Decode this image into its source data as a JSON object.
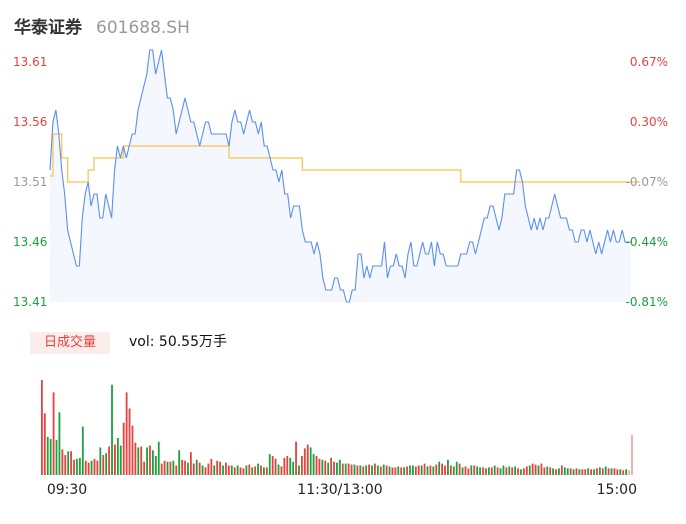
{
  "header": {
    "name": "华泰证券",
    "code": "601688.SH"
  },
  "volume_panel": {
    "badge": "日成交量",
    "vol_label": "vol: 50.55万手"
  },
  "colors": {
    "price_line": "#5b8ff0",
    "avg_line": "#f6c34a",
    "area_fill": "#f4f7fd",
    "up": "#e8413f",
    "down": "#1aa33c",
    "neutral": "#9a9a9a"
  },
  "chart_data": [
    {
      "type": "line",
      "title": "",
      "xlabel": "",
      "ylabel": "",
      "ylim": [
        13.41,
        13.61
      ],
      "y_ticks_left": [
        "13.61",
        "13.56",
        "13.51",
        "13.46",
        "13.41"
      ],
      "y_ticks_right": [
        "0.67%",
        "0.30%",
        "-0.07%",
        "-0.44%",
        "-0.81%"
      ],
      "x_ticks": [
        "09:30",
        "11:30/13:00",
        "15:00"
      ],
      "grid": false,
      "series": [
        {
          "name": "",
          "role": "price",
          "values": [
            13.52,
            13.56,
            13.57,
            13.55,
            13.52,
            13.5,
            13.47,
            13.46,
            13.45,
            13.44,
            13.44,
            13.48,
            13.5,
            13.51,
            13.49,
            13.5,
            13.5,
            13.48,
            13.48,
            13.5,
            13.49,
            13.48,
            13.52,
            13.54,
            13.53,
            13.54,
            13.53,
            13.54,
            13.55,
            13.55,
            13.57,
            13.58,
            13.59,
            13.6,
            13.62,
            13.62,
            13.6,
            13.61,
            13.62,
            13.6,
            13.58,
            13.58,
            13.57,
            13.55,
            13.56,
            13.57,
            13.58,
            13.57,
            13.56,
            13.56,
            13.55,
            13.54,
            13.55,
            13.56,
            13.56,
            13.55,
            13.55,
            13.55,
            13.55,
            13.55,
            13.55,
            13.54,
            13.56,
            13.57,
            13.56,
            13.56,
            13.55,
            13.56,
            13.57,
            13.56,
            13.56,
            13.55,
            13.56,
            13.54,
            13.54,
            13.53,
            13.52,
            13.52,
            13.51,
            13.52,
            13.5,
            13.5,
            13.48,
            13.49,
            13.49,
            13.49,
            13.47,
            13.46,
            13.46,
            13.46,
            13.45,
            13.46,
            13.45,
            13.43,
            13.42,
            13.42,
            13.42,
            13.43,
            13.43,
            13.42,
            13.42,
            13.41,
            13.41,
            13.42,
            13.42,
            13.45,
            13.45,
            13.43,
            13.44,
            13.43,
            13.44,
            13.44,
            13.44,
            13.44,
            13.46,
            13.43,
            13.44,
            13.44,
            13.45,
            13.44,
            13.44,
            13.43,
            13.45,
            13.46,
            13.44,
            13.44,
            13.45,
            13.46,
            13.45,
            13.45,
            13.46,
            13.44,
            13.46,
            13.45,
            13.45,
            13.44,
            13.44,
            13.44,
            13.44,
            13.44,
            13.45,
            13.45,
            13.45,
            13.46,
            13.46,
            13.45,
            13.46,
            13.47,
            13.48,
            13.48,
            13.49,
            13.49,
            13.48,
            13.47,
            13.48,
            13.5,
            13.5,
            13.5,
            13.5,
            13.52,
            13.52,
            13.51,
            13.49,
            13.48,
            13.47,
            13.48,
            13.47,
            13.48,
            13.47,
            13.48,
            13.48,
            13.49,
            13.5,
            13.49,
            13.48,
            13.48,
            13.48,
            13.47,
            13.47,
            13.46,
            13.46,
            13.47,
            13.47,
            13.46,
            13.47,
            13.46,
            13.45,
            13.46,
            13.45,
            13.46,
            13.47,
            13.46,
            13.47,
            13.46,
            13.46,
            13.47,
            13.46,
            13.46,
            13.46
          ]
        },
        {
          "name": "",
          "role": "average",
          "values": [
            13.515,
            13.55,
            13.55,
            13.55,
            13.53,
            13.53,
            13.51,
            13.51,
            13.51,
            13.51,
            13.51,
            13.51,
            13.51,
            13.52,
            13.52,
            13.53,
            13.53,
            13.53,
            13.53,
            13.53,
            13.53,
            13.53,
            13.53,
            13.53,
            13.53,
            13.54,
            13.54,
            13.54,
            13.54,
            13.54,
            13.54,
            13.54,
            13.54,
            13.54,
            13.54,
            13.54,
            13.54,
            13.54,
            13.54,
            13.54,
            13.54,
            13.54,
            13.54,
            13.54,
            13.54,
            13.54,
            13.54,
            13.54,
            13.54,
            13.54,
            13.54,
            13.54,
            13.54,
            13.54,
            13.54,
            13.54,
            13.54,
            13.54,
            13.54,
            13.54,
            13.54,
            13.53,
            13.53,
            13.53,
            13.53,
            13.53,
            13.53,
            13.53,
            13.53,
            13.53,
            13.53,
            13.53,
            13.53,
            13.53,
            13.53,
            13.53,
            13.53,
            13.53,
            13.53,
            13.53,
            13.53,
            13.53,
            13.53,
            13.53,
            13.53,
            13.53,
            13.52,
            13.52,
            13.52,
            13.52,
            13.52,
            13.52,
            13.52,
            13.52,
            13.52,
            13.52,
            13.52,
            13.52,
            13.52,
            13.52,
            13.52,
            13.52,
            13.52,
            13.52,
            13.52,
            13.52,
            13.52,
            13.52,
            13.52,
            13.52,
            13.52,
            13.52,
            13.52,
            13.52,
            13.52,
            13.52,
            13.52,
            13.52,
            13.52,
            13.52,
            13.52,
            13.52,
            13.52,
            13.52,
            13.52,
            13.52,
            13.52,
            13.52,
            13.52,
            13.52,
            13.52,
            13.52,
            13.52,
            13.52,
            13.52,
            13.52,
            13.52,
            13.52,
            13.52,
            13.52,
            13.51,
            13.51,
            13.51,
            13.51,
            13.51,
            13.51,
            13.51,
            13.51,
            13.51,
            13.51,
            13.51,
            13.51,
            13.51,
            13.51,
            13.51,
            13.51,
            13.51,
            13.51,
            13.51,
            13.51,
            13.51,
            13.51,
            13.51,
            13.51,
            13.51,
            13.51,
            13.51,
            13.51,
            13.51,
            13.51,
            13.51,
            13.51,
            13.51,
            13.51,
            13.51,
            13.51,
            13.51,
            13.51,
            13.51,
            13.51,
            13.51,
            13.51,
            13.51,
            13.51,
            13.51,
            13.51,
            13.51,
            13.51,
            13.51,
            13.51,
            13.51,
            13.51,
            13.51,
            13.51,
            13.51,
            13.51,
            13.51,
            13.51,
            13.51,
            13.51,
            13.51,
            13.51
          ]
        }
      ]
    },
    {
      "type": "bar",
      "title": "",
      "xlabel": "",
      "ylabel": "",
      "ylim": [
        0,
        1
      ],
      "grid": false,
      "series": [
        {
          "name": "",
          "values": [
            1.0,
            0.65,
            0.4,
            0.38,
            0.87,
            0.37,
            0.66,
            0.27,
            0.21,
            0.25,
            0.25,
            0.16,
            0.17,
            0.18,
            0.51,
            0.15,
            0.13,
            0.15,
            0.17,
            0.15,
            0.29,
            0.21,
            0.23,
            0.3,
            0.95,
            0.32,
            0.39,
            0.31,
            0.55,
            0.87,
            0.7,
            0.52,
            0.34,
            0.29,
            0.3,
            0.14,
            0.29,
            0.31,
            0.26,
            0.2,
            0.35,
            0.12,
            0.15,
            0.14,
            0.14,
            0.15,
            0.1,
            0.26,
            0.16,
            0.15,
            0.13,
            0.24,
            0.12,
            0.16,
            0.13,
            0.1,
            0.08,
            0.12,
            0.17,
            0.1,
            0.15,
            0.14,
            0.1,
            0.13,
            0.1,
            0.1,
            0.08,
            0.1,
            0.08,
            0.07,
            0.1,
            0.11,
            0.08,
            0.09,
            0.12,
            0.1,
            0.08,
            0.08,
            0.22,
            0.2,
            0.17,
            0.11,
            0.09,
            0.18,
            0.2,
            0.18,
            0.14,
            0.35,
            0.1,
            0.2,
            0.28,
            0.32,
            0.29,
            0.22,
            0.2,
            0.17,
            0.16,
            0.15,
            0.13,
            0.18,
            0.14,
            0.13,
            0.16,
            0.12,
            0.12,
            0.12,
            0.11,
            0.11,
            0.1,
            0.1,
            0.09,
            0.1,
            0.11,
            0.1,
            0.12,
            0.1,
            0.09,
            0.11,
            0.1,
            0.09,
            0.08,
            0.08,
            0.09,
            0.08,
            0.08,
            0.09,
            0.1,
            0.1,
            0.09,
            0.1,
            0.1,
            0.12,
            0.09,
            0.1,
            0.09,
            0.11,
            0.14,
            0.12,
            0.1,
            0.16,
            0.1,
            0.09,
            0.14,
            0.12,
            0.08,
            0.09,
            0.07,
            0.1,
            0.1,
            0.09,
            0.08,
            0.08,
            0.07,
            0.08,
            0.08,
            0.1,
            0.08,
            0.07,
            0.1,
            0.08,
            0.09,
            0.08,
            0.09,
            0.07,
            0.06,
            0.07,
            0.09,
            0.1,
            0.12,
            0.11,
            0.1,
            0.12,
            0.08,
            0.09,
            0.08,
            0.07,
            0.06,
            0.07,
            0.1,
            0.08,
            0.07,
            0.07,
            0.06,
            0.07,
            0.06,
            0.06,
            0.06,
            0.07,
            0.06,
            0.06,
            0.07,
            0.08,
            0.07,
            0.09,
            0.07,
            0.07,
            0.07,
            0.06,
            0.06,
            0.05,
            0.06,
            0.05,
            0.42
          ],
          "direction": [
            "u",
            "u",
            "d",
            "d",
            "u",
            "d",
            "d",
            "u",
            "u",
            "d",
            "u",
            "u",
            "d",
            "d",
            "d",
            "u",
            "u",
            "d",
            "u",
            "u",
            "d",
            "u",
            "d",
            "u",
            "d",
            "u",
            "d",
            "d",
            "u",
            "u",
            "u",
            "u",
            "u",
            "d",
            "u",
            "u",
            "d",
            "u",
            "d",
            "d",
            "d",
            "u",
            "u",
            "d",
            "u",
            "d",
            "u",
            "d",
            "u",
            "u",
            "d",
            "u",
            "u",
            "d",
            "u",
            "d",
            "u",
            "u",
            "u",
            "d",
            "u",
            "u",
            "d",
            "u",
            "u",
            "d",
            "u",
            "d",
            "u",
            "u",
            "d",
            "u",
            "d",
            "u",
            "d",
            "u",
            "d",
            "u",
            "d",
            "u",
            "u",
            "d",
            "u",
            "u",
            "u",
            "d",
            "d",
            "u",
            "d",
            "u",
            "u",
            "u",
            "d",
            "d",
            "u",
            "u",
            "d",
            "u",
            "d",
            "u",
            "u",
            "d",
            "d",
            "u",
            "d",
            "u",
            "u",
            "d",
            "u",
            "d",
            "u",
            "d",
            "u",
            "d",
            "u",
            "d",
            "u",
            "d",
            "u",
            "d",
            "u",
            "u",
            "d",
            "u",
            "d",
            "u",
            "d",
            "d",
            "u",
            "u",
            "d",
            "u",
            "d",
            "u",
            "d",
            "u",
            "d",
            "u",
            "u",
            "d",
            "u",
            "d",
            "d",
            "u",
            "d",
            "u",
            "u",
            "d",
            "u",
            "d",
            "d",
            "u",
            "u",
            "d",
            "u",
            "d",
            "u",
            "d",
            "d",
            "u",
            "d",
            "u",
            "d",
            "u",
            "d",
            "u",
            "u",
            "d",
            "u",
            "u",
            "d",
            "u",
            "u",
            "d",
            "u",
            "d",
            "u",
            "d",
            "u",
            "d",
            "d",
            "u",
            "d",
            "u",
            "d",
            "u",
            "u",
            "d",
            "u",
            "d",
            "u",
            "d",
            "u",
            "d",
            "u",
            "d",
            "u",
            "u",
            "d",
            "u",
            "d",
            "n"
          ]
        }
      ]
    }
  ]
}
